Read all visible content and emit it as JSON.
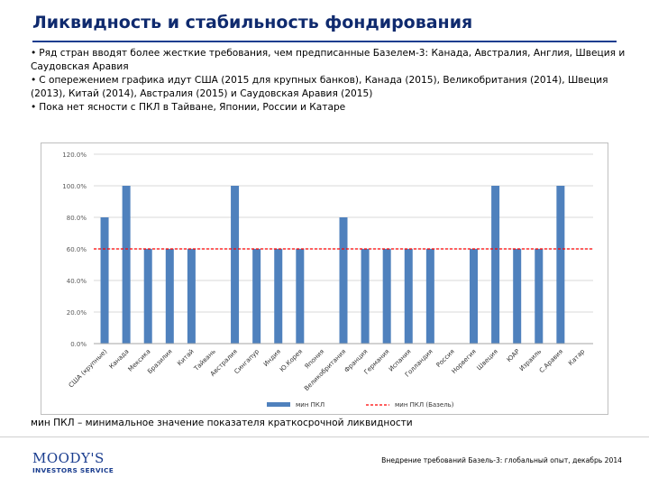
{
  "slide": {
    "title": "Ликвидность и стабильность фондирования",
    "bullets": [
      "Ряд стран вводят более жесткие требования, чем предписанные Базелем-3: Канада, Австралия, Англия, Швеция и Саудовская Аравия",
      "С опережением графика идут США (2015 для крупных банков), Канада (2015), Великобритания (2014), Швеция (2013), Китай (2014), Австралия (2015) и Саудовская Аравия (2015)",
      "Пока нет ясности с ПКЛ в Тайване, Японии, России и Катаре"
    ],
    "bullet_marker": "•",
    "footnote": "мин ПКЛ – минимальное значение показателя краткосрочной ликвидности",
    "logo": {
      "brand": "MOODY'S",
      "sub": "INVESTORS SERVICE"
    },
    "footer": "Внедрение требований Базель-3: глобальный опыт, декабрь 2014"
  },
  "colors": {
    "title": "#0f2a6e",
    "accent": "#1a3d8f",
    "bar": "#4f81bd",
    "baseline_series": "#ff0000",
    "grid": "#d9d9d9",
    "axis_text": "#595959"
  },
  "chart_data": {
    "type": "bar",
    "categories": [
      "США (крупные)",
      "Канада",
      "Мексика",
      "Бразилия",
      "Китай",
      "Тайвань",
      "Австралия",
      "Сингапур",
      "Индия",
      "Ю.Корея",
      "Япония",
      "Великобритания",
      "Франция",
      "Германия",
      "Испания",
      "Голландия",
      "Россия",
      "Норвегия",
      "Швеция",
      "ЮАР",
      "Израиль",
      "С.Аравия",
      "Катар"
    ],
    "series": [
      {
        "name": "мин ПКЛ",
        "type": "bar",
        "values": [
          80,
          100,
          60,
          60,
          60,
          null,
          100,
          60,
          60,
          60,
          null,
          80,
          60,
          60,
          60,
          60,
          null,
          60,
          100,
          60,
          60,
          100,
          null
        ]
      },
      {
        "name": "мин ПКЛ (Базель)",
        "type": "line",
        "style": "dashed",
        "value": 60
      }
    ],
    "y_ticks": [
      "0.0%",
      "20.0%",
      "40.0%",
      "60.0%",
      "80.0%",
      "100.0%",
      "120.0%"
    ],
    "ylim": [
      0,
      120
    ],
    "title": "",
    "xlabel": "",
    "ylabel": "",
    "grid": true,
    "legend": "bottom"
  }
}
